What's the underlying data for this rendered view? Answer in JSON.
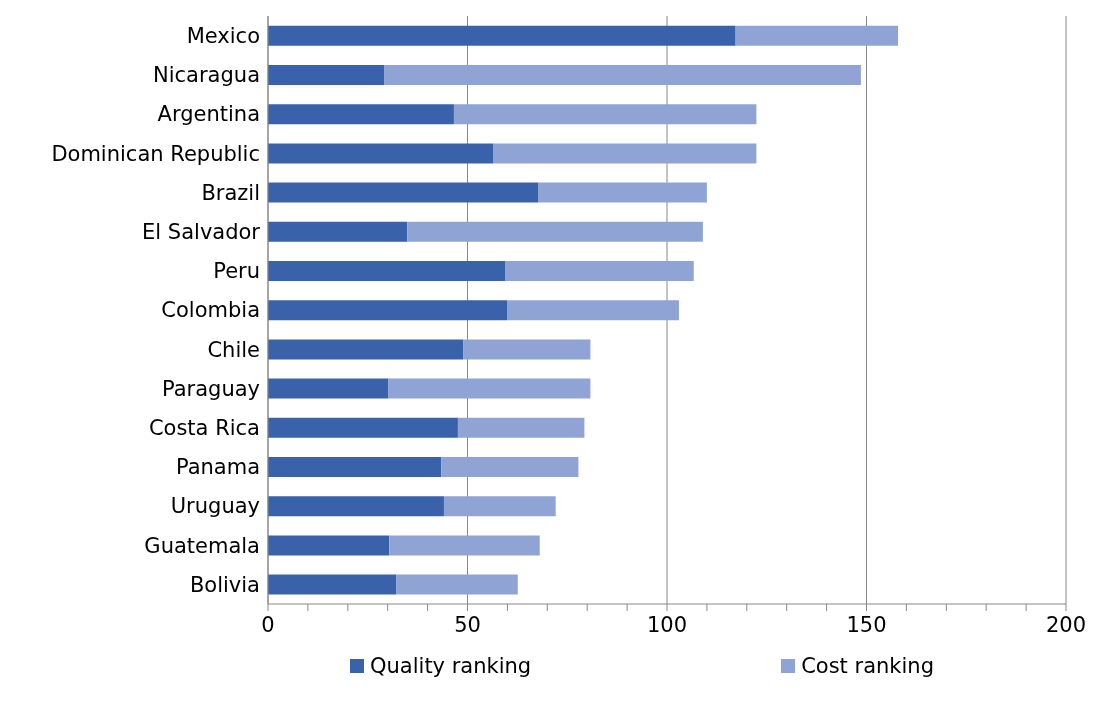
{
  "chart_data": {
    "type": "bar",
    "orientation": "horizontal",
    "stacked": true,
    "grid": "x",
    "legend": "bottom",
    "categories": [
      "Mexico",
      "Nicaragua",
      "Argentina",
      "Dominican Republic",
      "Brazil",
      "El Salvador",
      "Peru",
      "Colombia",
      "Chile",
      "Paraguay",
      "Costa Rica",
      "Panama",
      "Uruguay",
      "Guatemala",
      "Bolivia"
    ],
    "series": [
      {
        "name": "Quality ranking",
        "color": "#3a62ab",
        "values": [
          117.2,
          29.2,
          46.6,
          56.4,
          67.8,
          34.9,
          59.4,
          59.9,
          48.9,
          30.2,
          47.6,
          43.4,
          44.1,
          30.4,
          32.2
        ]
      },
      {
        "name": "Cost ranking",
        "color": "#8fa3d4",
        "values": [
          40.7,
          119.4,
          75.8,
          66,
          42.2,
          74.1,
          47.3,
          43.1,
          31.9,
          50.6,
          31.7,
          34.4,
          28,
          37.7,
          30.4
        ]
      }
    ],
    "xlim": [
      0,
      200
    ],
    "xticks": [
      0,
      {
        "value": 10,
        "label": null
      },
      {
        "value": 20,
        "label": null
      },
      {
        "value": 30,
        "label": null
      },
      {
        "value": 40,
        "label": null
      },
      50,
      {
        "value": 60,
        "label": null
      },
      {
        "value": 70,
        "label": null
      },
      {
        "value": 80,
        "label": null
      },
      {
        "value": 90,
        "label": null
      },
      100,
      {
        "value": 110,
        "label": null
      },
      {
        "value": 120,
        "label": null
      },
      {
        "value": 130,
        "label": null
      },
      {
        "value": 140,
        "label": null
      },
      150,
      {
        "value": 160,
        "label": null
      },
      {
        "value": 170,
        "label": null
      },
      {
        "value": 180,
        "label": null
      },
      {
        "value": 190,
        "label": null
      },
      200
    ]
  }
}
